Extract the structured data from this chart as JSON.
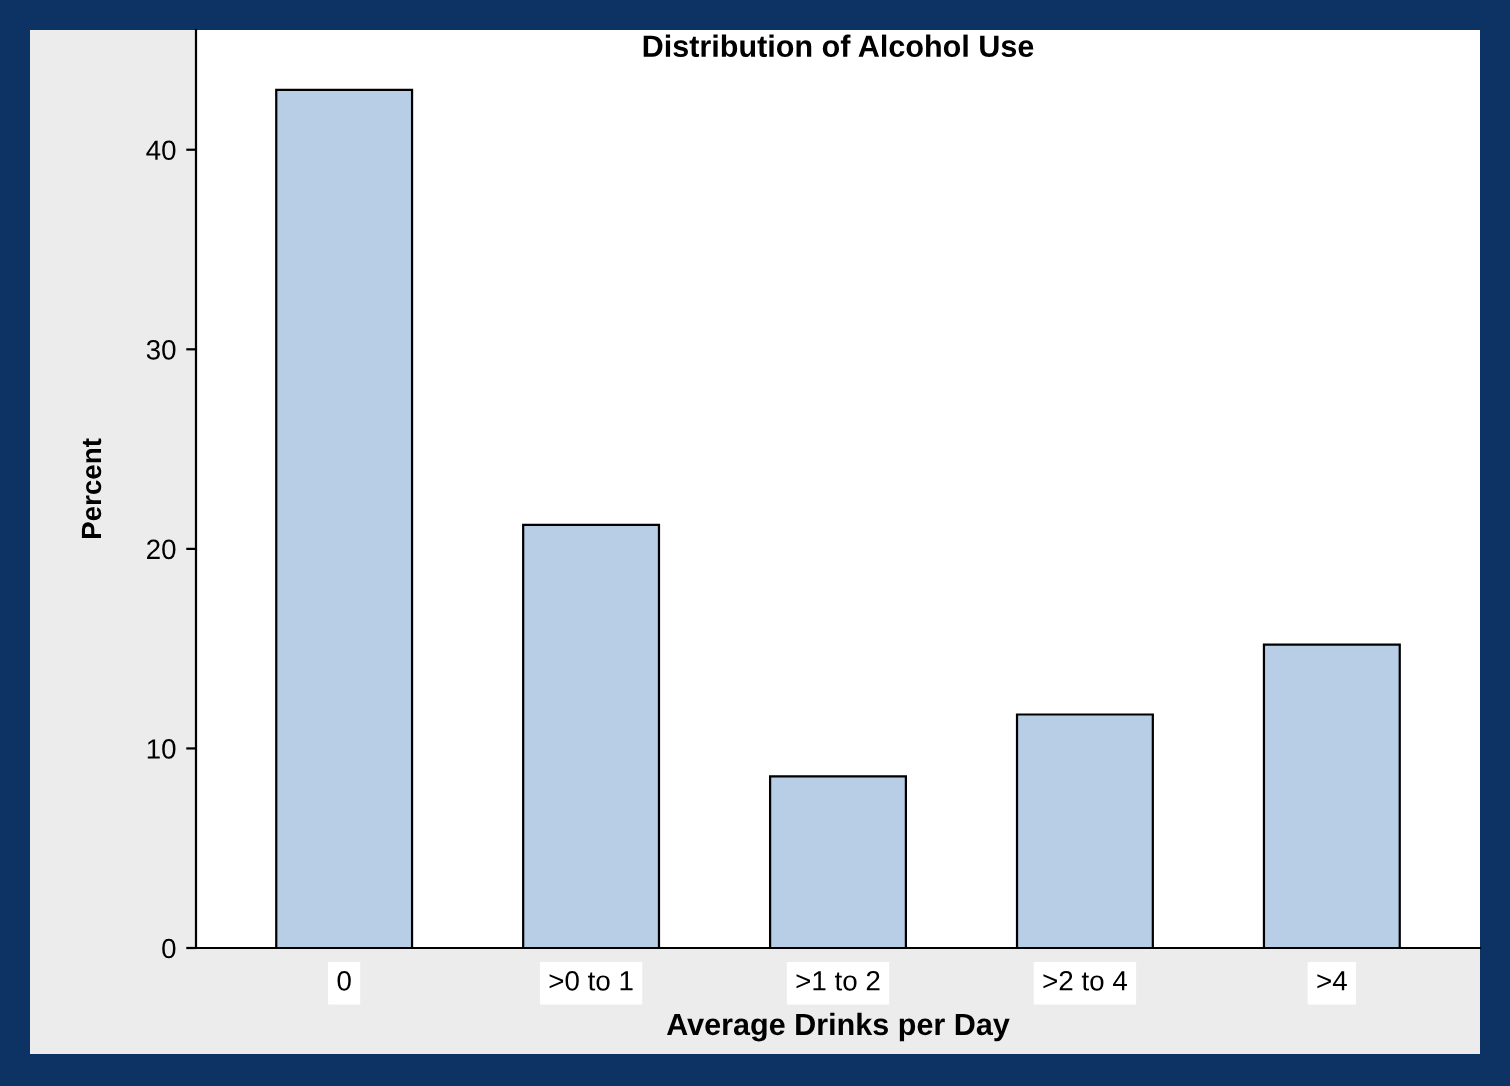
{
  "chart_data": {
    "type": "bar",
    "title": "Distribution of Alcohol Use",
    "xlabel": "Average Drinks per Day",
    "ylabel": "Percent",
    "categories": [
      "0",
      ">0 to 1",
      ">1 to 2",
      ">2 to 4",
      ">4"
    ],
    "values": [
      43,
      21.2,
      8.6,
      11.7,
      15.2
    ],
    "color": "#b8cde6",
    "ylim": [
      0,
      46
    ],
    "yticks": [
      0,
      10,
      20,
      30,
      40
    ],
    "grid": false
  }
}
